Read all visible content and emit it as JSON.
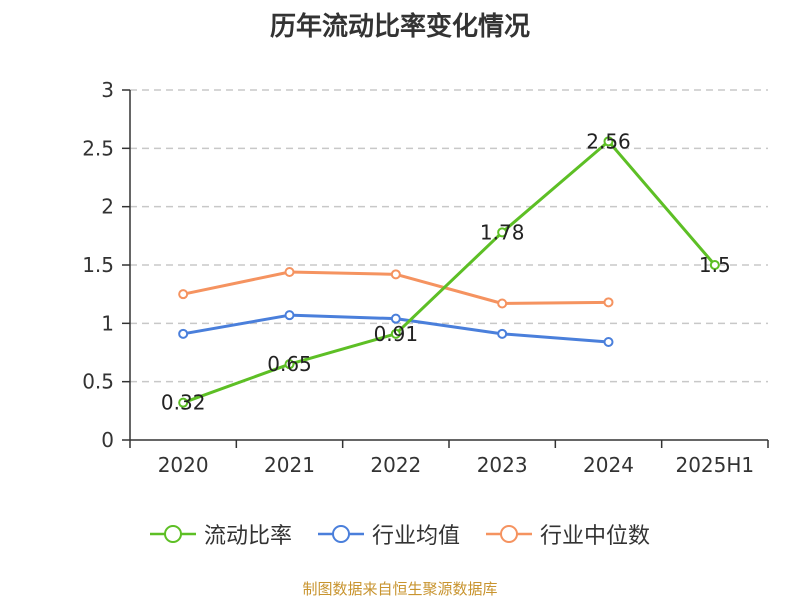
{
  "chart_data": {
    "type": "line",
    "title": "历年流动比率变化情况",
    "categories": [
      "2020",
      "2021",
      "2022",
      "2023",
      "2024",
      "2025H1"
    ],
    "ylim": [
      0,
      3
    ],
    "yticks": [
      "0",
      "0.5",
      "1",
      "1.5",
      "2",
      "2.5",
      "3"
    ],
    "ytick_values": [
      0,
      0.5,
      1,
      1.5,
      2,
      2.5,
      3
    ],
    "grid": true,
    "legend_position": "bottom",
    "series": [
      {
        "name": "流动比率",
        "color": "#5dbf25",
        "values": [
          0.32,
          0.65,
          0.91,
          1.78,
          2.56,
          1.5
        ],
        "labels": [
          "0.32",
          "0.65",
          "0.91",
          "1.78",
          "2.56",
          "1.5"
        ]
      },
      {
        "name": "行业均值",
        "color": "#4a7fdb",
        "values": [
          0.91,
          1.07,
          1.04,
          0.91,
          0.84,
          null
        ]
      },
      {
        "name": "行业中位数",
        "color": "#f59360",
        "values": [
          1.25,
          1.44,
          1.42,
          1.17,
          1.18,
          null
        ]
      }
    ]
  },
  "source": "制图数据来自恒生聚源数据库"
}
